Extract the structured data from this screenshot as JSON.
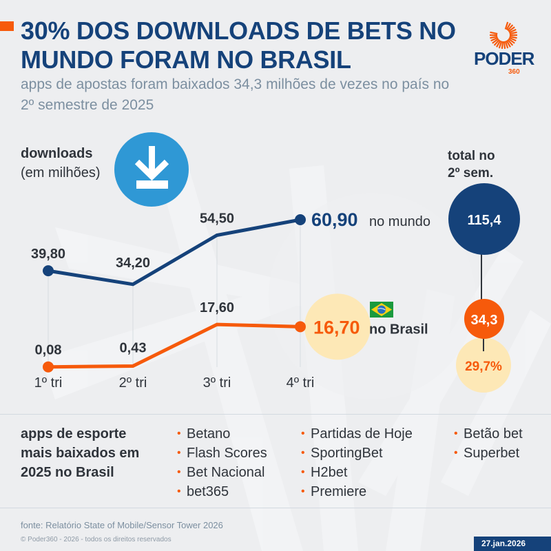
{
  "header": {
    "title": "30% DOS DOWNLOADS DE BETS NO MUNDO FORAM NO BRASIL",
    "subtitle": "apps de apostas foram baixados 34,3 milhões de vezes no país no 2º semestre de 2025",
    "logo_word": "PODER",
    "logo_number": "360"
  },
  "colors": {
    "world": "#15427a",
    "brazil": "#f65a0b",
    "highlight": "#fde8b6",
    "icon_blue": "#2f98d5",
    "text": "#2f343b"
  },
  "chart_data": {
    "type": "line",
    "title": "downloads",
    "ylabel": "(em milhões)",
    "xlabel": "",
    "categories": [
      "1º tri",
      "2º tri",
      "3º tri",
      "4º tri"
    ],
    "series": [
      {
        "name": "no mundo",
        "values": [
          39.8,
          34.2,
          54.5,
          60.9
        ],
        "labels": [
          "39,80",
          "34,20",
          "54,50",
          "60,90"
        ]
      },
      {
        "name": "no Brasil",
        "values": [
          0.08,
          0.43,
          17.6,
          16.7
        ],
        "labels": [
          "0,08",
          "0,43",
          "17,60",
          "16,70"
        ]
      }
    ],
    "ylim": [
      0,
      60.9
    ],
    "grid": "vertical",
    "totals": {
      "label": "total no 2º sem.",
      "world": "115,4",
      "brazil": "34,3",
      "share": "29,7%"
    }
  },
  "apps": {
    "title": "apps de esporte mais baixados em 2025 no Brasil",
    "columns": [
      [
        "Betano",
        "Flash Scores",
        "Bet Nacional",
        "bet365"
      ],
      [
        "Partidas de Hoje",
        "SportingBet",
        "H2bet",
        "Premiere"
      ],
      [
        "Betão bet",
        "Superbet"
      ]
    ]
  },
  "footer": {
    "source": "fonte: Relatório State of Mobile/Sensor Tower 2026",
    "copyright": "© Poder360 - 2026 - todos os direitos reservados",
    "date": "27.jan.2026"
  },
  "icons": {
    "download": "download-icon",
    "flag": "brazil-flag-icon",
    "logo": "poder360-sun-logo"
  }
}
